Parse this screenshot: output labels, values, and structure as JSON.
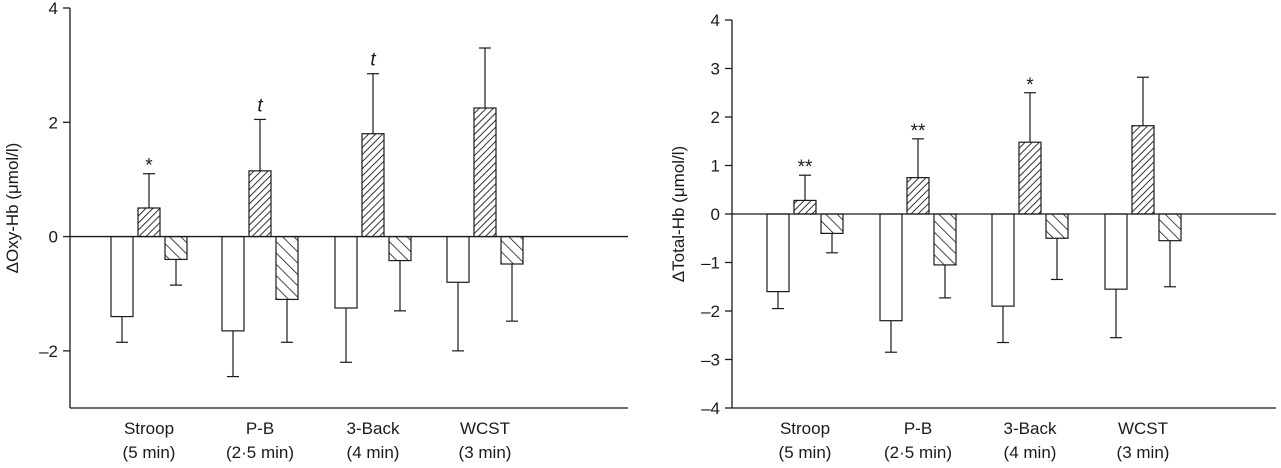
{
  "chart_data": [
    {
      "type": "bar",
      "ylabel": "ΔOxy-Hb (μmol/l)",
      "ylim": [
        -3,
        4
      ],
      "yticks": [
        -2,
        0,
        2,
        4
      ],
      "yticklabels": [
        "–2",
        "0",
        "2",
        "4"
      ],
      "categories": [
        {
          "line1": "Stroop",
          "line2": "(5 min)"
        },
        {
          "line1": "P-B",
          "line2": "(2·5 min)"
        },
        {
          "line1": "3-Back",
          "line2": "(4 min)"
        },
        {
          "line1": "WCST",
          "line2": "(3 min)"
        }
      ],
      "series": [
        {
          "pattern": "open",
          "values": [
            -1.4,
            -1.65,
            -1.25,
            -0.8
          ],
          "errors": [
            0.45,
            0.8,
            0.95,
            1.2
          ]
        },
        {
          "pattern": "hatch-dense",
          "values": [
            0.5,
            1.15,
            1.8,
            2.25
          ],
          "errors": [
            0.6,
            0.9,
            1.05,
            1.05
          ]
        },
        {
          "pattern": "hatch-sparse",
          "values": [
            -0.4,
            -1.1,
            -0.42,
            -0.48
          ],
          "errors": [
            0.45,
            0.75,
            0.88,
            1.0
          ]
        }
      ],
      "annotations": [
        "*",
        "t",
        "t",
        ""
      ]
    },
    {
      "type": "bar",
      "ylabel": "ΔTotal-Hb (μmol/l)",
      "ylim": [
        -4,
        4
      ],
      "yticks": [
        -4,
        -3,
        -2,
        -1,
        0,
        1,
        2,
        3,
        4
      ],
      "yticklabels": [
        "–4",
        "–3",
        "–2",
        "–1",
        "0",
        "1",
        "2",
        "3",
        "4"
      ],
      "categories": [
        {
          "line1": "Stroop",
          "line2": "(5 min)"
        },
        {
          "line1": "P-B",
          "line2": "(2·5 min)"
        },
        {
          "line1": "3-Back",
          "line2": "(4 min)"
        },
        {
          "line1": "WCST",
          "line2": "(3 min)"
        }
      ],
      "series": [
        {
          "pattern": "open",
          "values": [
            -1.6,
            -2.2,
            -1.9,
            -1.55
          ],
          "errors": [
            0.35,
            0.65,
            0.75,
            1.0
          ]
        },
        {
          "pattern": "hatch-dense",
          "values": [
            0.28,
            0.75,
            1.48,
            1.82
          ],
          "errors": [
            0.52,
            0.8,
            1.02,
            1.0
          ]
        },
        {
          "pattern": "hatch-sparse",
          "values": [
            -0.4,
            -1.05,
            -0.5,
            -0.55
          ],
          "errors": [
            0.4,
            0.68,
            0.85,
            0.95
          ]
        }
      ],
      "annotations": [
        "**",
        "**",
        "*",
        ""
      ]
    }
  ]
}
